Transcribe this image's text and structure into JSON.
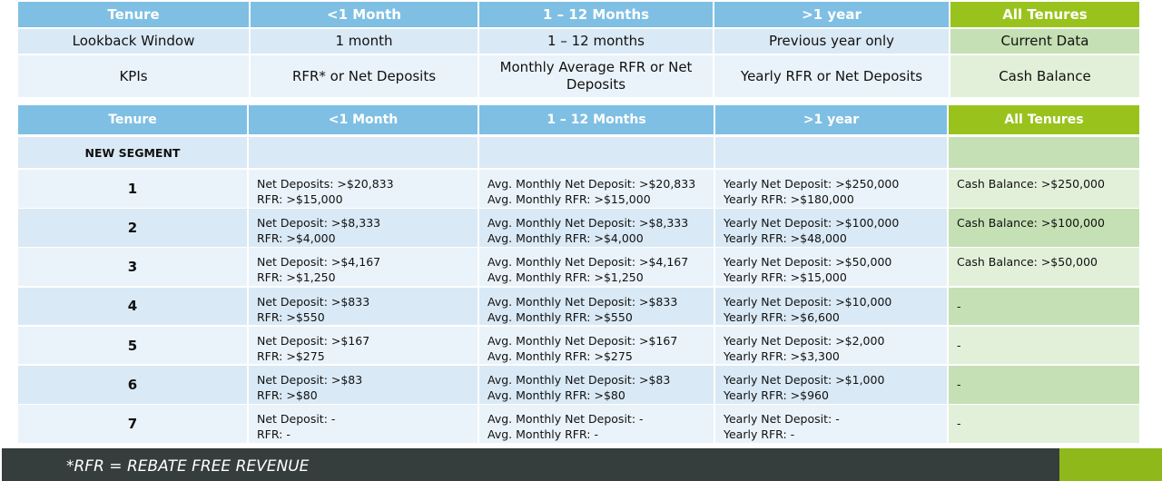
{
  "table1": {
    "header": [
      "Tenure",
      "<1 Month",
      "1 – 12 Months",
      ">1 year",
      "All Tenures"
    ],
    "rows": [
      [
        "Lookback Window",
        "1 month",
        "1 – 12 months",
        "Previous year only",
        "Current Data"
      ],
      [
        "KPIs",
        "RFR* or Net Deposits",
        "Monthly Average RFR or Net Deposits",
        "Yearly RFR or Net Deposits",
        "Cash Balance"
      ]
    ]
  },
  "table2": {
    "header": [
      "Tenure",
      "<1 Month",
      "1 – 12 Months",
      ">1 year",
      "All Tenures"
    ],
    "segment_label": "NEW SEGMENT",
    "rows": [
      {
        "segment": "1",
        "cells": [
          [
            "Net Deposits: >$20,833",
            "RFR: >$15,000"
          ],
          [
            "Avg. Monthly Net Deposit: >$20,833",
            "Avg. Monthly RFR: >$15,000"
          ],
          [
            "Yearly Net Deposit: >$250,000",
            "Yearly RFR: >$180,000"
          ],
          [
            "Cash Balance: >$250,000"
          ]
        ]
      },
      {
        "segment": "2",
        "cells": [
          [
            "Net Deposit: >$8,333",
            "RFR: >$4,000"
          ],
          [
            "Avg. Monthly Net Deposit: >$8,333",
            "Avg. Monthly RFR: >$4,000"
          ],
          [
            "Yearly Net Deposit: >$100,000",
            "Yearly RFR: >$48,000"
          ],
          [
            "Cash Balance: >$100,000"
          ]
        ]
      },
      {
        "segment": "3",
        "cells": [
          [
            "Net Deposit: >$4,167",
            "RFR: >$1,250"
          ],
          [
            "Avg. Monthly Net Deposit: >$4,167",
            "Avg. Monthly RFR: >$1,250"
          ],
          [
            "Yearly Net Deposit: >$50,000",
            "Yearly RFR: >$15,000"
          ],
          [
            "Cash Balance: >$50,000"
          ]
        ]
      },
      {
        "segment": "4",
        "cells": [
          [
            "Net Deposit: >$833",
            "RFR: >$550"
          ],
          [
            "Avg. Monthly Net Deposit: >$833",
            "Avg. Monthly RFR: >$550"
          ],
          [
            "Yearly Net Deposit: >$10,000",
            "Yearly RFR: >$6,600"
          ],
          [
            "-"
          ]
        ]
      },
      {
        "segment": "5",
        "cells": [
          [
            "Net Deposit: >$167",
            "RFR: >$275"
          ],
          [
            "Avg. Monthly Net Deposit: >$167",
            "Avg. Monthly RFR: >$275"
          ],
          [
            "Yearly Net Deposit: >$2,000",
            "Yearly RFR: >$3,300"
          ],
          [
            "-"
          ]
        ]
      },
      {
        "segment": "6",
        "cells": [
          [
            "Net Deposit: >$83",
            "RFR: >$80"
          ],
          [
            "Avg. Monthly Net Deposit: >$83",
            "Avg. Monthly RFR: >$80"
          ],
          [
            "Yearly Net Deposit: >$1,000",
            "Yearly RFR: >$960"
          ],
          [
            "-"
          ]
        ]
      },
      {
        "segment": "7",
        "cells": [
          [
            "Net Deposit: -",
            "RFR: -"
          ],
          [
            "Avg. Monthly Net Deposit: -",
            "Avg. Monthly RFR: -"
          ],
          [
            "Yearly Net Deposit: -",
            "Yearly RFR: -"
          ],
          [
            "-"
          ]
        ]
      }
    ]
  },
  "footer": {
    "note": "*RFR = REBATE FREE REVENUE"
  }
}
